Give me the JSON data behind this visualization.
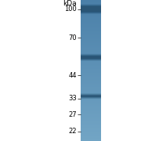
{
  "background_color": "#ffffff",
  "marker_labels": [
    "100",
    "70",
    "44",
    "33",
    "27",
    "22"
  ],
  "marker_positions": [
    100,
    70,
    44,
    33,
    27,
    22
  ],
  "kda_label": "kDa",
  "lane_color_top": "#4a7fa8",
  "lane_color_bottom": "#6a9fc0",
  "band1_kda": 100,
  "band2_kda": 55,
  "band3_kda": 34,
  "band_dark_color": "#2a5575",
  "label_fontsize": 6.0,
  "kda_fontsize": 6.5
}
